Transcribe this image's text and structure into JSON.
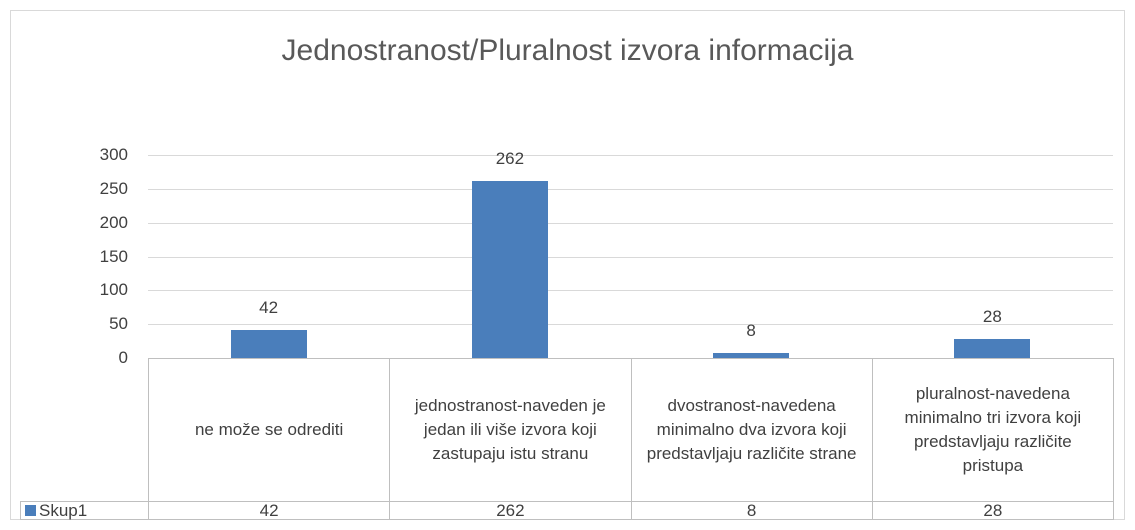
{
  "chart_data": {
    "type": "bar",
    "title": "Jednostranost/Pluralnost izvora informacija",
    "categories": [
      "ne može se odrediti",
      "jednostranost-naveden je jedan ili više izvora koji zastupaju istu stranu",
      "dvostranost-navedena minimalno dva izvora koji predstavljaju različite strane",
      "pluralnost-navedena minimalno tri izvora koji predstavljaju različite pristupa"
    ],
    "series": [
      {
        "name": "Skup1",
        "color": "#4a7ebb",
        "values": [
          42,
          262,
          8,
          28
        ]
      }
    ],
    "ylim": [
      0,
      300
    ],
    "yticks": [
      0,
      50,
      100,
      150,
      200,
      250,
      300
    ],
    "grid": true,
    "data_labels": true,
    "data_table": true
  }
}
